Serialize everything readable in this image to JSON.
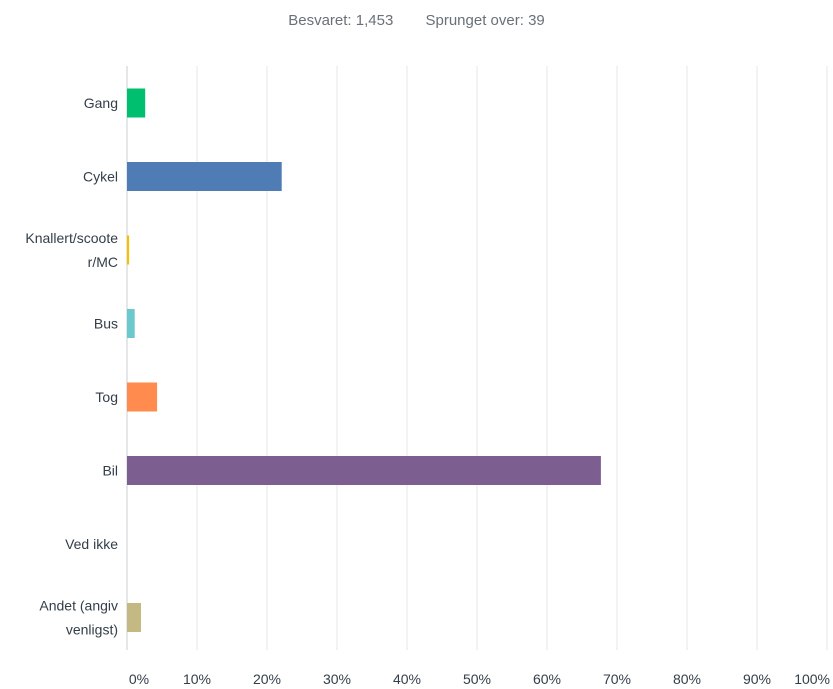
{
  "summary": {
    "answered_label": "Besvaret:",
    "answered_value": "1,453",
    "skipped_label": "Sprunget over:",
    "skipped_value": "39"
  },
  "colors": {
    "gridline": "#e6e8ea",
    "axis": "#c9cdd1",
    "text": "#333e48"
  },
  "chart_data": {
    "type": "bar",
    "orientation": "horizontal",
    "title": "",
    "xlabel": "",
    "ylabel": "",
    "xlim": [
      0,
      100
    ],
    "grid": true,
    "categories": [
      {
        "label_lines": [
          "Gang"
        ],
        "value": 2.6,
        "color": "#00bf6f"
      },
      {
        "label_lines": [
          "Cykel"
        ],
        "value": 22.1,
        "color": "#507cb6"
      },
      {
        "label_lines": [
          "Knallert/scoote",
          "r/MC"
        ],
        "value": 0.3,
        "color": "#f9be00"
      },
      {
        "label_lines": [
          "Bus"
        ],
        "value": 1.1,
        "color": "#6bc8cd"
      },
      {
        "label_lines": [
          "Tog"
        ],
        "value": 4.3,
        "color": "#ff8b4f"
      },
      {
        "label_lines": [
          "Bil"
        ],
        "value": 67.7,
        "color": "#7d5e90"
      },
      {
        "label_lines": [
          "Ved ikke"
        ],
        "value": 0,
        "color": "#d25f90"
      },
      {
        "label_lines": [
          "Andet (angiv",
          "venligst)"
        ],
        "value": 2.0,
        "color": "#c4b883"
      }
    ],
    "ticks": [
      "0%",
      "10%",
      "20%",
      "30%",
      "40%",
      "50%",
      "60%",
      "70%",
      "80%",
      "90%",
      "100%"
    ]
  }
}
